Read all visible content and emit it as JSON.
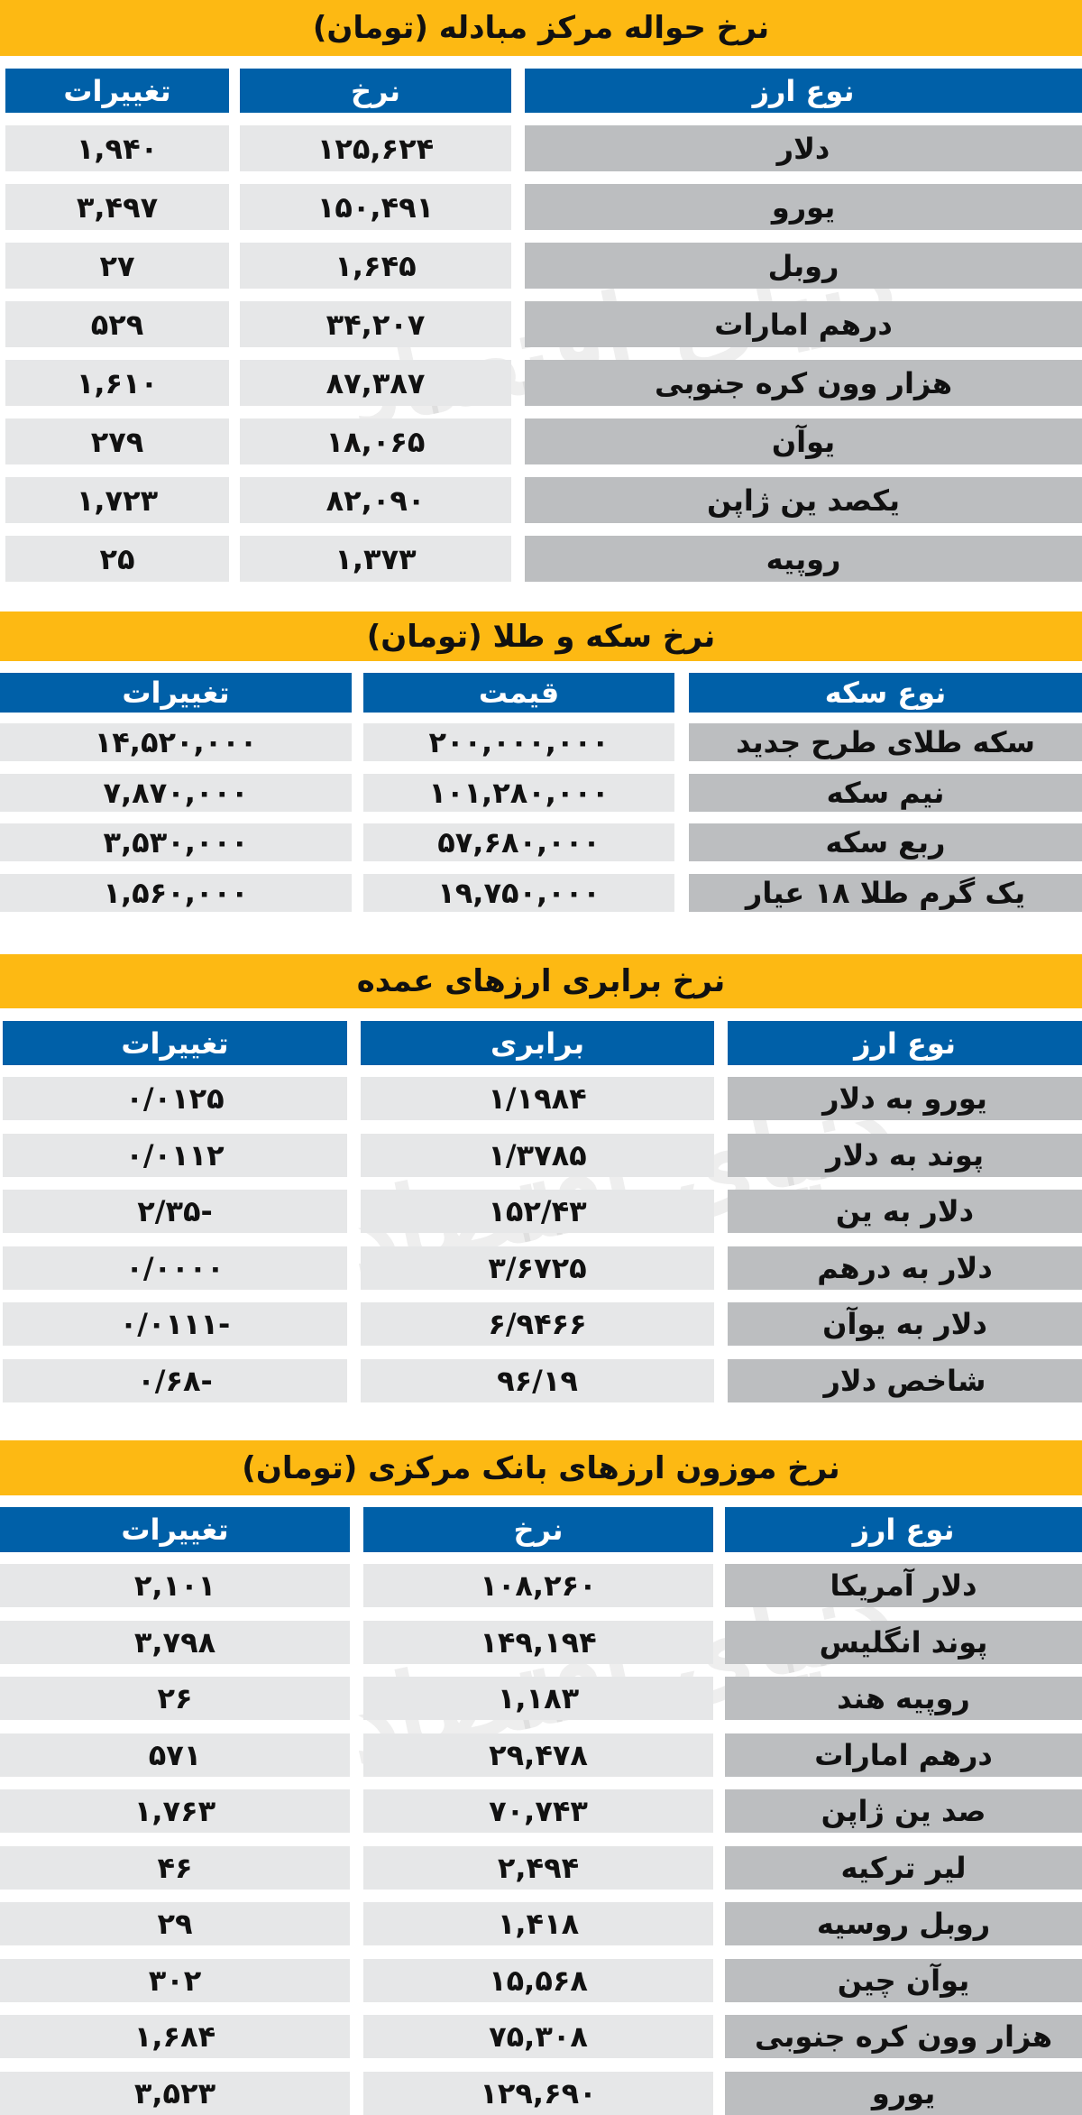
{
  "colors": {
    "title_bg": "#FDB913",
    "header_bg": "#0060A8",
    "value_cell_bg": "#E6E7E8",
    "name_cell_bg": "#BCBEC0"
  },
  "watermark": "دنیای اقتصاد",
  "sections": [
    {
      "title": "نرخ حواله مرکز مبادله (تومان)",
      "headers": [
        "تغییرات",
        "نرخ",
        "نوع ارز"
      ],
      "rows": [
        [
          "۱,۹۴۰",
          "۱۲۵,۶۲۴",
          "دلار"
        ],
        [
          "۳,۴۹۷",
          "۱۵۰,۴۹۱",
          "یورو"
        ],
        [
          "۲۷",
          "۱,۶۴۵",
          "روبل"
        ],
        [
          "۵۲۹",
          "۳۴,۲۰۷",
          "درهم امارات"
        ],
        [
          "۱,۶۱۰",
          "۸۷,۳۸۷",
          "هزار وون کره جنوبی"
        ],
        [
          "۲۷۹",
          "۱۸,۰۶۵",
          "یوآن"
        ],
        [
          "۱,۷۲۳",
          "۸۲,۰۹۰",
          "یکصد ین ژاپن"
        ],
        [
          "۲۵",
          "۱,۳۷۳",
          "روپیه"
        ]
      ]
    },
    {
      "title": "نرخ سکه و طلا  (تومان)",
      "headers": [
        "تغییرات",
        "قیمت",
        "نوع سکه"
      ],
      "rows": [
        [
          "۱۴,۵۲۰,۰۰۰",
          "۲۰۰,۰۰۰,۰۰۰",
          "سکه طلای طرح جدید"
        ],
        [
          "۷,۸۷۰,۰۰۰",
          "۱۰۱,۲۸۰,۰۰۰",
          "نیم سکه"
        ],
        [
          "۳,۵۳۰,۰۰۰",
          "۵۷,۶۸۰,۰۰۰",
          "ربع سکه"
        ],
        [
          "۱,۵۶۰,۰۰۰",
          "۱۹,۷۵۰,۰۰۰",
          "یک گرم طلا ۱۸ عیار"
        ]
      ]
    },
    {
      "title": "نرخ برابری ارزهای عمده",
      "headers": [
        "تغییرات",
        "برابری",
        "نوع ارز"
      ],
      "rows": [
        [
          "۰/۰۱۲۵",
          "۱/۱۹۸۴",
          "یورو به دلار"
        ],
        [
          "۰/۰۱۱۲",
          "۱/۳۷۸۵",
          "پوند به دلار"
        ],
        [
          "-۲/۳۵",
          "۱۵۲/۴۳",
          "دلار به ین"
        ],
        [
          "۰/۰۰۰۰",
          "۳/۶۷۲۵",
          "دلار به درهم"
        ],
        [
          "-۰/۰۱۱۱",
          "۶/۹۴۶۶",
          "دلار به یوآن"
        ],
        [
          "-۰/۶۸",
          "۹۶/۱۹",
          "شاخص دلار"
        ]
      ]
    },
    {
      "title": "نرخ موزون ارزهای بانک مرکزی (تومان)",
      "headers": [
        "تغییرات",
        "نرخ",
        "نوع ارز"
      ],
      "rows": [
        [
          "۲,۱۰۱",
          "۱۰۸,۲۶۰",
          "دلار آمریکا"
        ],
        [
          "۳,۷۹۸",
          "۱۴۹,۱۹۴",
          "پوند انگلیس"
        ],
        [
          "۲۶",
          "۱,۱۸۳",
          "روپیه هند"
        ],
        [
          "۵۷۱",
          "۲۹,۴۷۸",
          "درهم امارات"
        ],
        [
          "۱,۷۶۳",
          "۷۰,۷۴۳",
          "صد ین ژاپن"
        ],
        [
          "۴۶",
          "۲,۴۹۴",
          "لیر ترکیه"
        ],
        [
          "۲۹",
          "۱,۴۱۸",
          "روبل روسیه"
        ],
        [
          "۳۰۲",
          "۱۵,۵۶۸",
          "یوآن چین"
        ],
        [
          "۱,۶۸۴",
          "۷۵,۳۰۸",
          "هزار وون کره جنوبی"
        ],
        [
          "۳,۵۲۳",
          "۱۲۹,۶۹۰",
          "یورو"
        ]
      ]
    }
  ]
}
